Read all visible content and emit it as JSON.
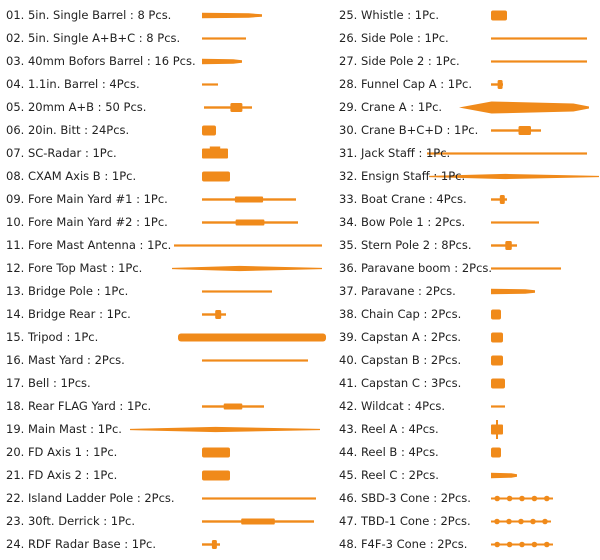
{
  "accent_color": "#f08a1a",
  "left_column": [
    {
      "label": "01. 5in. Single Barrel : 8 Pcs.",
      "shape": "barrel"
    },
    {
      "label": "02. 5in. Single A+B+C : 8 Pcs.",
      "shape": "rod"
    },
    {
      "label": "03. 40mm Bofors Barrel : 16 Pcs.",
      "shape": "barrel"
    },
    {
      "label": "04. 1.1in. Barrel : 4Pcs.",
      "shape": "rod"
    },
    {
      "label": "05. 20mm A+B : 50 Pcs.",
      "shape": "gun"
    },
    {
      "label": "06. 20in. Bitt : 24Pcs.",
      "shape": "block"
    },
    {
      "label": "07. SC-Radar : 1Pc.",
      "shape": "radar"
    },
    {
      "label": "08. CXAM Axis B : 1Pc.",
      "shape": "block"
    },
    {
      "label": "09. Fore Main Yard #1 : 1Pc.",
      "shape": "yard"
    },
    {
      "label": "10. Fore Main Yard #2 : 1Pc.",
      "shape": "yard"
    },
    {
      "label": "11. Fore Mast Antenna : 1Pc.",
      "shape": "rod"
    },
    {
      "label": "12. Fore  Top Mast : 1Pc.",
      "shape": "mast"
    },
    {
      "label": "13. Bridge Pole : 1Pc.",
      "shape": "rod"
    },
    {
      "label": "14. Bridge Rear : 1Pc.",
      "shape": "gun"
    },
    {
      "label": "15. Tripod : 1Pc.",
      "shape": "thick"
    },
    {
      "label": "16. Mast Yard : 2Pcs.",
      "shape": "rod"
    },
    {
      "label": "17. Bell : 1Pcs.",
      "shape": "none"
    },
    {
      "label": "18. Rear  FLAG Yard : 1Pc.",
      "shape": "yard"
    },
    {
      "label": "19. Main Mast : 1Pc.",
      "shape": "mast"
    },
    {
      "label": "20. FD Axis 1 : 1Pc.",
      "shape": "block"
    },
    {
      "label": "21. FD Axis 2 : 1Pc.",
      "shape": "block"
    },
    {
      "label": "22. Island Ladder Pole : 2Pcs.",
      "shape": "rod"
    },
    {
      "label": "23. 30ft. Derrick : 1Pc.",
      "shape": "yard"
    },
    {
      "label": "24. RDF Radar Base : 1Pc.",
      "shape": "gun"
    }
  ],
  "right_column": [
    {
      "label": "25. Whistle : 1Pc.",
      "shape": "block"
    },
    {
      "label": "26. Side Pole : 1Pc.",
      "shape": "rod"
    },
    {
      "label": "27. Side Pole 2 : 1Pc.",
      "shape": "rod"
    },
    {
      "label": "28. Funnel Cap A : 1Pc.",
      "shape": "gun"
    },
    {
      "label": "29. Crane A : 1Pc.",
      "shape": "crane"
    },
    {
      "label": "30. Crane B+C+D : 1Pc.",
      "shape": "gun"
    },
    {
      "label": "31. Jack Staff : 1Pc.",
      "shape": "rod"
    },
    {
      "label": "32. Ensign Staff : 1Pc.",
      "shape": "mast"
    },
    {
      "label": "33. Boat Crane : 4Pcs.",
      "shape": "gun"
    },
    {
      "label": "34. Bow Pole 1 : 2Pcs.",
      "shape": "rod"
    },
    {
      "label": "35. Stern Pole 2 : 8Pcs.",
      "shape": "gun"
    },
    {
      "label": "36. Paravane boom : 2Pcs.",
      "shape": "rod"
    },
    {
      "label": "37. Paravane : 2Pcs.",
      "shape": "barrel"
    },
    {
      "label": "38. Chain Cap : 2Pcs.",
      "shape": "block"
    },
    {
      "label": "39. Capstan A : 2Pcs.",
      "shape": "block"
    },
    {
      "label": "40. Capstan B : 2Pcs.",
      "shape": "block"
    },
    {
      "label": "41. Capstan C : 3Pcs.",
      "shape": "block"
    },
    {
      "label": "42. Wildcat : 4Pcs.",
      "shape": "rod"
    },
    {
      "label": "43. Reel A : 4Pcs.",
      "shape": "reel"
    },
    {
      "label": "44. Reel B : 4Pcs.",
      "shape": "block"
    },
    {
      "label": "45. Reel C : 2Pcs.",
      "shape": "barrel"
    },
    {
      "label": "46. SBD-3 Cone : 2Pcs.",
      "shape": "beaded"
    },
    {
      "label": "47. TBD-1 Cone : 2Pcs.",
      "shape": "beaded"
    },
    {
      "label": "48. F4F-3 Cone : 2Pcs.",
      "shape": "beaded"
    }
  ]
}
